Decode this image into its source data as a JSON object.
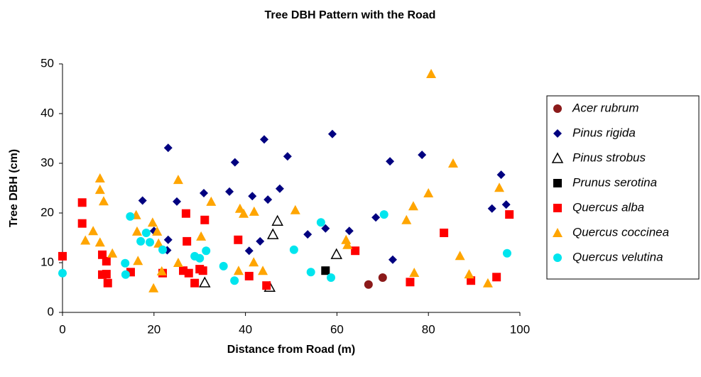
{
  "chart_data": {
    "type": "scatter",
    "title": "Tree DBH Pattern with the Road",
    "x_label": "Distance from Road (m)",
    "y_label": "Tree DBH (cm)",
    "xlim": [
      0,
      100
    ],
    "xticks": [
      0,
      20,
      40,
      60,
      80,
      100
    ],
    "ylim": [
      0,
      50
    ],
    "yticks": [
      0,
      10,
      20,
      30,
      40,
      50
    ],
    "grid": false,
    "legend": "right",
    "series": [
      {
        "name": "Acer rubrum",
        "color": "#8b1a1a",
        "marker": "circle",
        "x": [
          66.9,
          70.0
        ],
        "values": [
          5.6,
          7.0
        ]
      },
      {
        "name": "Pinus rigida",
        "color": "#000080",
        "marker": "diamond",
        "x": [
          17.5,
          20,
          23.1,
          23.1,
          22.9,
          25,
          30.9,
          36.5,
          37.7,
          40.8,
          41.5,
          43.2,
          44.1,
          44.9,
          47.5,
          49.2,
          53.6,
          57.5,
          59,
          62.7,
          68.5,
          71.6,
          72.2,
          78.6,
          93.9,
          95.9,
          97
        ],
        "values": [
          22.5,
          16.4,
          33.1,
          14.6,
          12.5,
          22.3,
          24,
          24.3,
          30.2,
          12.4,
          23.4,
          14.3,
          34.8,
          22.7,
          24.9,
          31.4,
          15.7,
          16.9,
          35.9,
          16.4,
          19.1,
          30.4,
          10.6,
          31.7,
          20.9,
          27.7,
          21.7
        ]
      },
      {
        "name": "Pinus strobus",
        "color": "#000000",
        "marker": "triangle-open",
        "x": [
          31.1,
          45.3,
          46,
          47,
          59.9
        ],
        "values": [
          6.0,
          5.1,
          15.7,
          18.4,
          11.7
        ]
      },
      {
        "name": "Prunus serotina",
        "color": "#000000",
        "marker": "square",
        "x": [
          57.5
        ],
        "values": [
          8.4
        ]
      },
      {
        "name": "Quercus alba",
        "color": "#ff0000",
        "marker": "square",
        "x": [
          0,
          4.3,
          4.3,
          8.7,
          8.7,
          9.6,
          9.6,
          9.9,
          14.9,
          21.9,
          27,
          27.2,
          26.4,
          27.6,
          28.9,
          30,
          30.7,
          31.1,
          38.4,
          40.8,
          44.6,
          64,
          76,
          83.4,
          89.3,
          94.9,
          97.7
        ],
        "values": [
          11.3,
          22.1,
          17.9,
          11.6,
          7.6,
          10.3,
          7.7,
          5.9,
          8.1,
          7.9,
          19.9,
          14.3,
          8.4,
          7.9,
          5.9,
          8.7,
          8.4,
          18.6,
          14.6,
          7.3,
          5.4,
          12.4,
          6.1,
          16,
          6.4,
          7.1,
          19.7
        ]
      },
      {
        "name": "Quercus coccinea",
        "color": "#ffa500",
        "marker": "triangle",
        "x": [
          5,
          6.7,
          8.2,
          8.2,
          9,
          8.2,
          10.9,
          16.1,
          16.3,
          16.5,
          19.7,
          20.7,
          21,
          21.7,
          19.9,
          25.3,
          25.3,
          30.3,
          32.5,
          38.5,
          38.8,
          39.6,
          41.8,
          41.9,
          43.8,
          50.9,
          62,
          62.3,
          76.9,
          75.2,
          76.7,
          80,
          80.6,
          85.4,
          86.9,
          88.9,
          93,
          95.5
        ],
        "values": [
          14.5,
          16.4,
          27,
          24.7,
          22.4,
          14.1,
          11.9,
          19.6,
          16.3,
          10.4,
          18.1,
          16.3,
          13.9,
          8.3,
          4.9,
          26.7,
          10,
          15.3,
          22.3,
          8.4,
          20.9,
          19.9,
          10.1,
          20.3,
          8.4,
          20.6,
          14.6,
          13.6,
          8,
          18.6,
          21.4,
          24,
          48,
          30,
          11.4,
          7.7,
          5.9,
          25.1
        ]
      },
      {
        "name": "Quercus velutina",
        "color": "#00e5ee",
        "marker": "circle",
        "x": [
          0,
          13.7,
          13.8,
          14.8,
          17.1,
          18.3,
          19.1,
          21.9,
          28.9,
          30,
          31.4,
          35.2,
          37.6,
          50.6,
          54.3,
          56.5,
          58.7,
          70.3,
          97.2
        ],
        "values": [
          7.9,
          9.9,
          7.6,
          19.3,
          14.3,
          16,
          14.1,
          12.6,
          11.3,
          10.9,
          12.4,
          9.3,
          6.4,
          12.6,
          8.1,
          18.1,
          7,
          19.7,
          11.9
        ]
      }
    ]
  }
}
